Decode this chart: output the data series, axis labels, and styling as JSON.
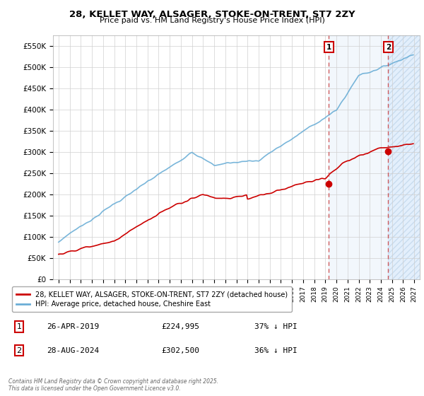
{
  "title": "28, KELLET WAY, ALSAGER, STOKE-ON-TRENT, ST7 2ZY",
  "subtitle": "Price paid vs. HM Land Registry's House Price Index (HPI)",
  "ylim": [
    0,
    575000
  ],
  "yticks": [
    0,
    50000,
    100000,
    150000,
    200000,
    250000,
    300000,
    350000,
    400000,
    450000,
    500000,
    550000
  ],
  "ytick_labels": [
    "£0",
    "£50K",
    "£100K",
    "£150K",
    "£200K",
    "£250K",
    "£300K",
    "£350K",
    "£400K",
    "£450K",
    "£500K",
    "£550K"
  ],
  "xlim_start": 1994.5,
  "xlim_end": 2027.5,
  "hpi_color": "#6baed6",
  "price_color": "#cc0000",
  "vline1_x": 2019.32,
  "vline2_x": 2024.66,
  "marker1_y": 550000,
  "marker2_y": 550000,
  "dot1_x": 2019.32,
  "dot1_y": 224995,
  "dot2_x": 2024.66,
  "dot2_y": 302500,
  "legend_label_price": "28, KELLET WAY, ALSAGER, STOKE-ON-TRENT, ST7 2ZY (detached house)",
  "legend_label_hpi": "HPI: Average price, detached house, Cheshire East",
  "table_row1": [
    "1",
    "26-APR-2019",
    "£224,995",
    "37% ↓ HPI"
  ],
  "table_row2": [
    "2",
    "28-AUG-2024",
    "£302,500",
    "36% ↓ HPI"
  ],
  "footer": "Contains HM Land Registry data © Crown copyright and database right 2025.\nThis data is licensed under the Open Government Licence v3.0.",
  "background_color": "#ffffff",
  "grid_color": "#d0d0d0",
  "shade_color": "#ddeeff",
  "hatch_color": "#b0c8e0"
}
